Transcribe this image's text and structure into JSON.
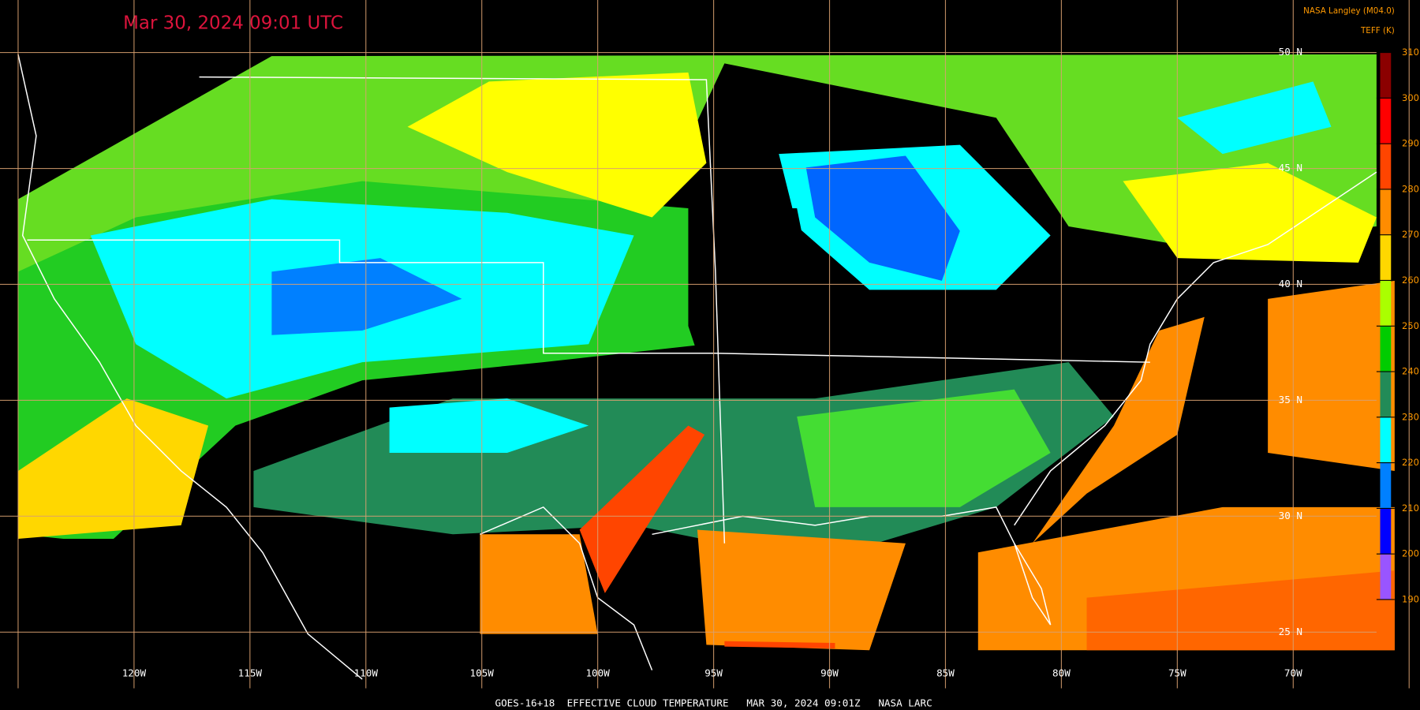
{
  "header": {
    "title": "Mar 30, 2024 09:01 UTC",
    "credit": "NASA Langley (M04.0)",
    "unit": "TEFF (K)"
  },
  "footer": "GOES-16+18  EFFECTIVE CLOUD TEMPERATURE   MAR 30, 2024 09:01Z   NASA LARC",
  "grid": {
    "longitudes": [
      "120W",
      "115W",
      "110W",
      "105W",
      "100W",
      "95W",
      "90W",
      "85W",
      "80W",
      "75W",
      "70W"
    ],
    "latitudes": [
      "50 N",
      "45 N",
      "40 N",
      "35 N",
      "30 N",
      "25 N"
    ]
  },
  "colorbar": {
    "ticks": [
      310,
      300,
      290,
      280,
      270,
      260,
      250,
      240,
      230,
      220,
      210,
      200,
      190
    ],
    "colors": [
      "#8b0000",
      "#ff0000",
      "#ff4500",
      "#ff8c00",
      "#ffd700",
      "#aaff00",
      "#00cc00",
      "#228b57",
      "#00ffff",
      "#0080ff",
      "#0000ff",
      "#9955ff"
    ]
  }
}
